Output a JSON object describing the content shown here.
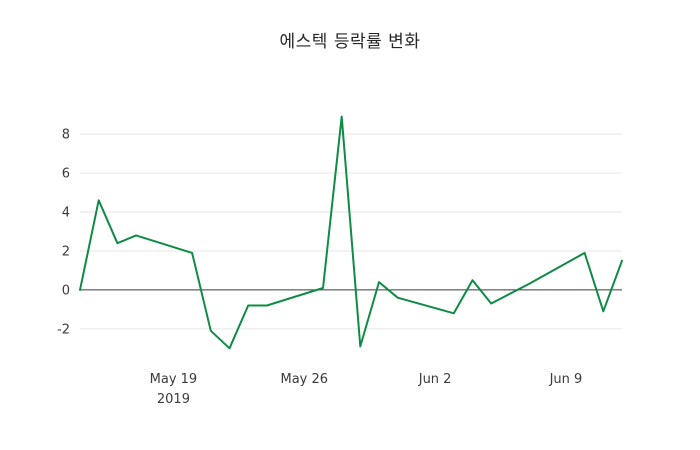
{
  "title": "에스텍 등락률 변화",
  "colors": {
    "background": "#ffffff",
    "line": "#0f8b45",
    "grid": "#e6e6e6",
    "zero_line": "#404040",
    "tick_text": "#3b3b3b",
    "title_text": "#262626"
  },
  "chart_data": {
    "type": "line",
    "title": "에스텍 등락률 변화",
    "xlabel": "",
    "ylabel": "",
    "legend": "none",
    "grid": "horizontal",
    "ylim": [
      -3.6,
      9.6
    ],
    "x_range": [
      "2019-05-14",
      "2019-06-12"
    ],
    "y_ticks": [
      -2,
      0,
      2,
      4,
      6,
      8
    ],
    "x_ticks": [
      {
        "label": "May 19",
        "sublabel": "2019",
        "date": "2019-05-19"
      },
      {
        "label": "May 26",
        "sublabel": "",
        "date": "2019-05-26"
      },
      {
        "label": "Jun 2",
        "sublabel": "",
        "date": "2019-06-02"
      },
      {
        "label": "Jun 9",
        "sublabel": "",
        "date": "2019-06-09"
      }
    ],
    "series": [
      {
        "name": "에스텍 등락률",
        "color": "#0f8b45",
        "points": [
          {
            "date": "2019-05-14",
            "value": 0.0
          },
          {
            "date": "2019-05-15",
            "value": 4.6
          },
          {
            "date": "2019-05-16",
            "value": 2.4
          },
          {
            "date": "2019-05-17",
            "value": 2.8
          },
          {
            "date": "2019-05-20",
            "value": 1.9
          },
          {
            "date": "2019-05-21",
            "value": -2.1
          },
          {
            "date": "2019-05-22",
            "value": -3.0
          },
          {
            "date": "2019-05-23",
            "value": -0.8
          },
          {
            "date": "2019-05-24",
            "value": -0.8
          },
          {
            "date": "2019-05-27",
            "value": 0.1
          },
          {
            "date": "2019-05-28",
            "value": 8.9
          },
          {
            "date": "2019-05-29",
            "value": -2.9
          },
          {
            "date": "2019-05-30",
            "value": 0.4
          },
          {
            "date": "2019-05-31",
            "value": -0.4
          },
          {
            "date": "2019-06-03",
            "value": -1.2
          },
          {
            "date": "2019-06-04",
            "value": 0.5
          },
          {
            "date": "2019-06-05",
            "value": -0.7
          },
          {
            "date": "2019-06-07",
            "value": 0.3
          },
          {
            "date": "2019-06-10",
            "value": 1.9
          },
          {
            "date": "2019-06-11",
            "value": -1.1
          },
          {
            "date": "2019-06-12",
            "value": 1.5
          }
        ]
      }
    ]
  }
}
